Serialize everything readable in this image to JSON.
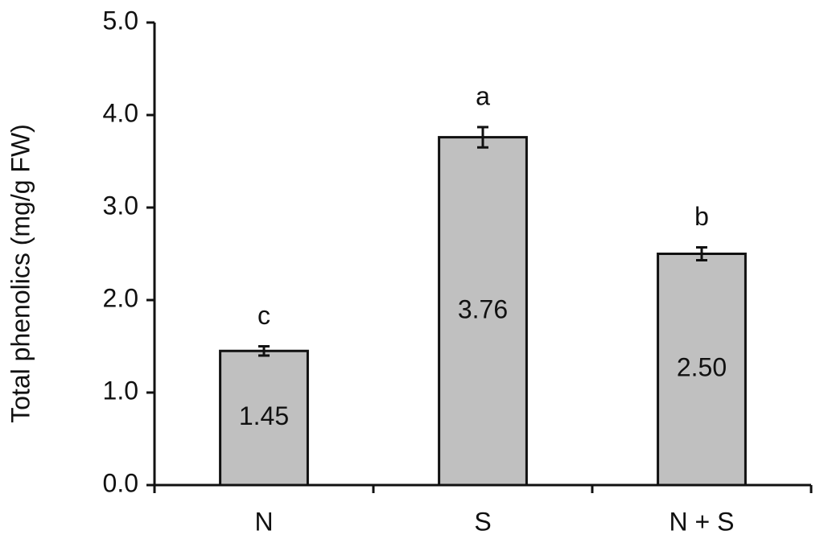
{
  "chart_data": {
    "type": "bar",
    "ylabel": "Total phenolics (mg/g FW)",
    "categories": [
      "N",
      "S",
      "N + S"
    ],
    "values": [
      1.45,
      3.76,
      2.5
    ],
    "value_labels": [
      "1.45",
      "3.76",
      "2.50"
    ],
    "errors": [
      0.05,
      0.11,
      0.07
    ],
    "annotations": [
      "c",
      "a",
      "b"
    ],
    "color": "#c0c0c0",
    "ylim": [
      0,
      5
    ],
    "yticks": [
      {
        "value": 0,
        "label": "0.0"
      },
      {
        "value": 1,
        "label": "1.0"
      },
      {
        "value": 2,
        "label": "2.0"
      },
      {
        "value": 3,
        "label": "3.0"
      },
      {
        "value": 4,
        "label": "4.0"
      },
      {
        "value": 5,
        "label": "5.0"
      }
    ],
    "grid": false
  }
}
